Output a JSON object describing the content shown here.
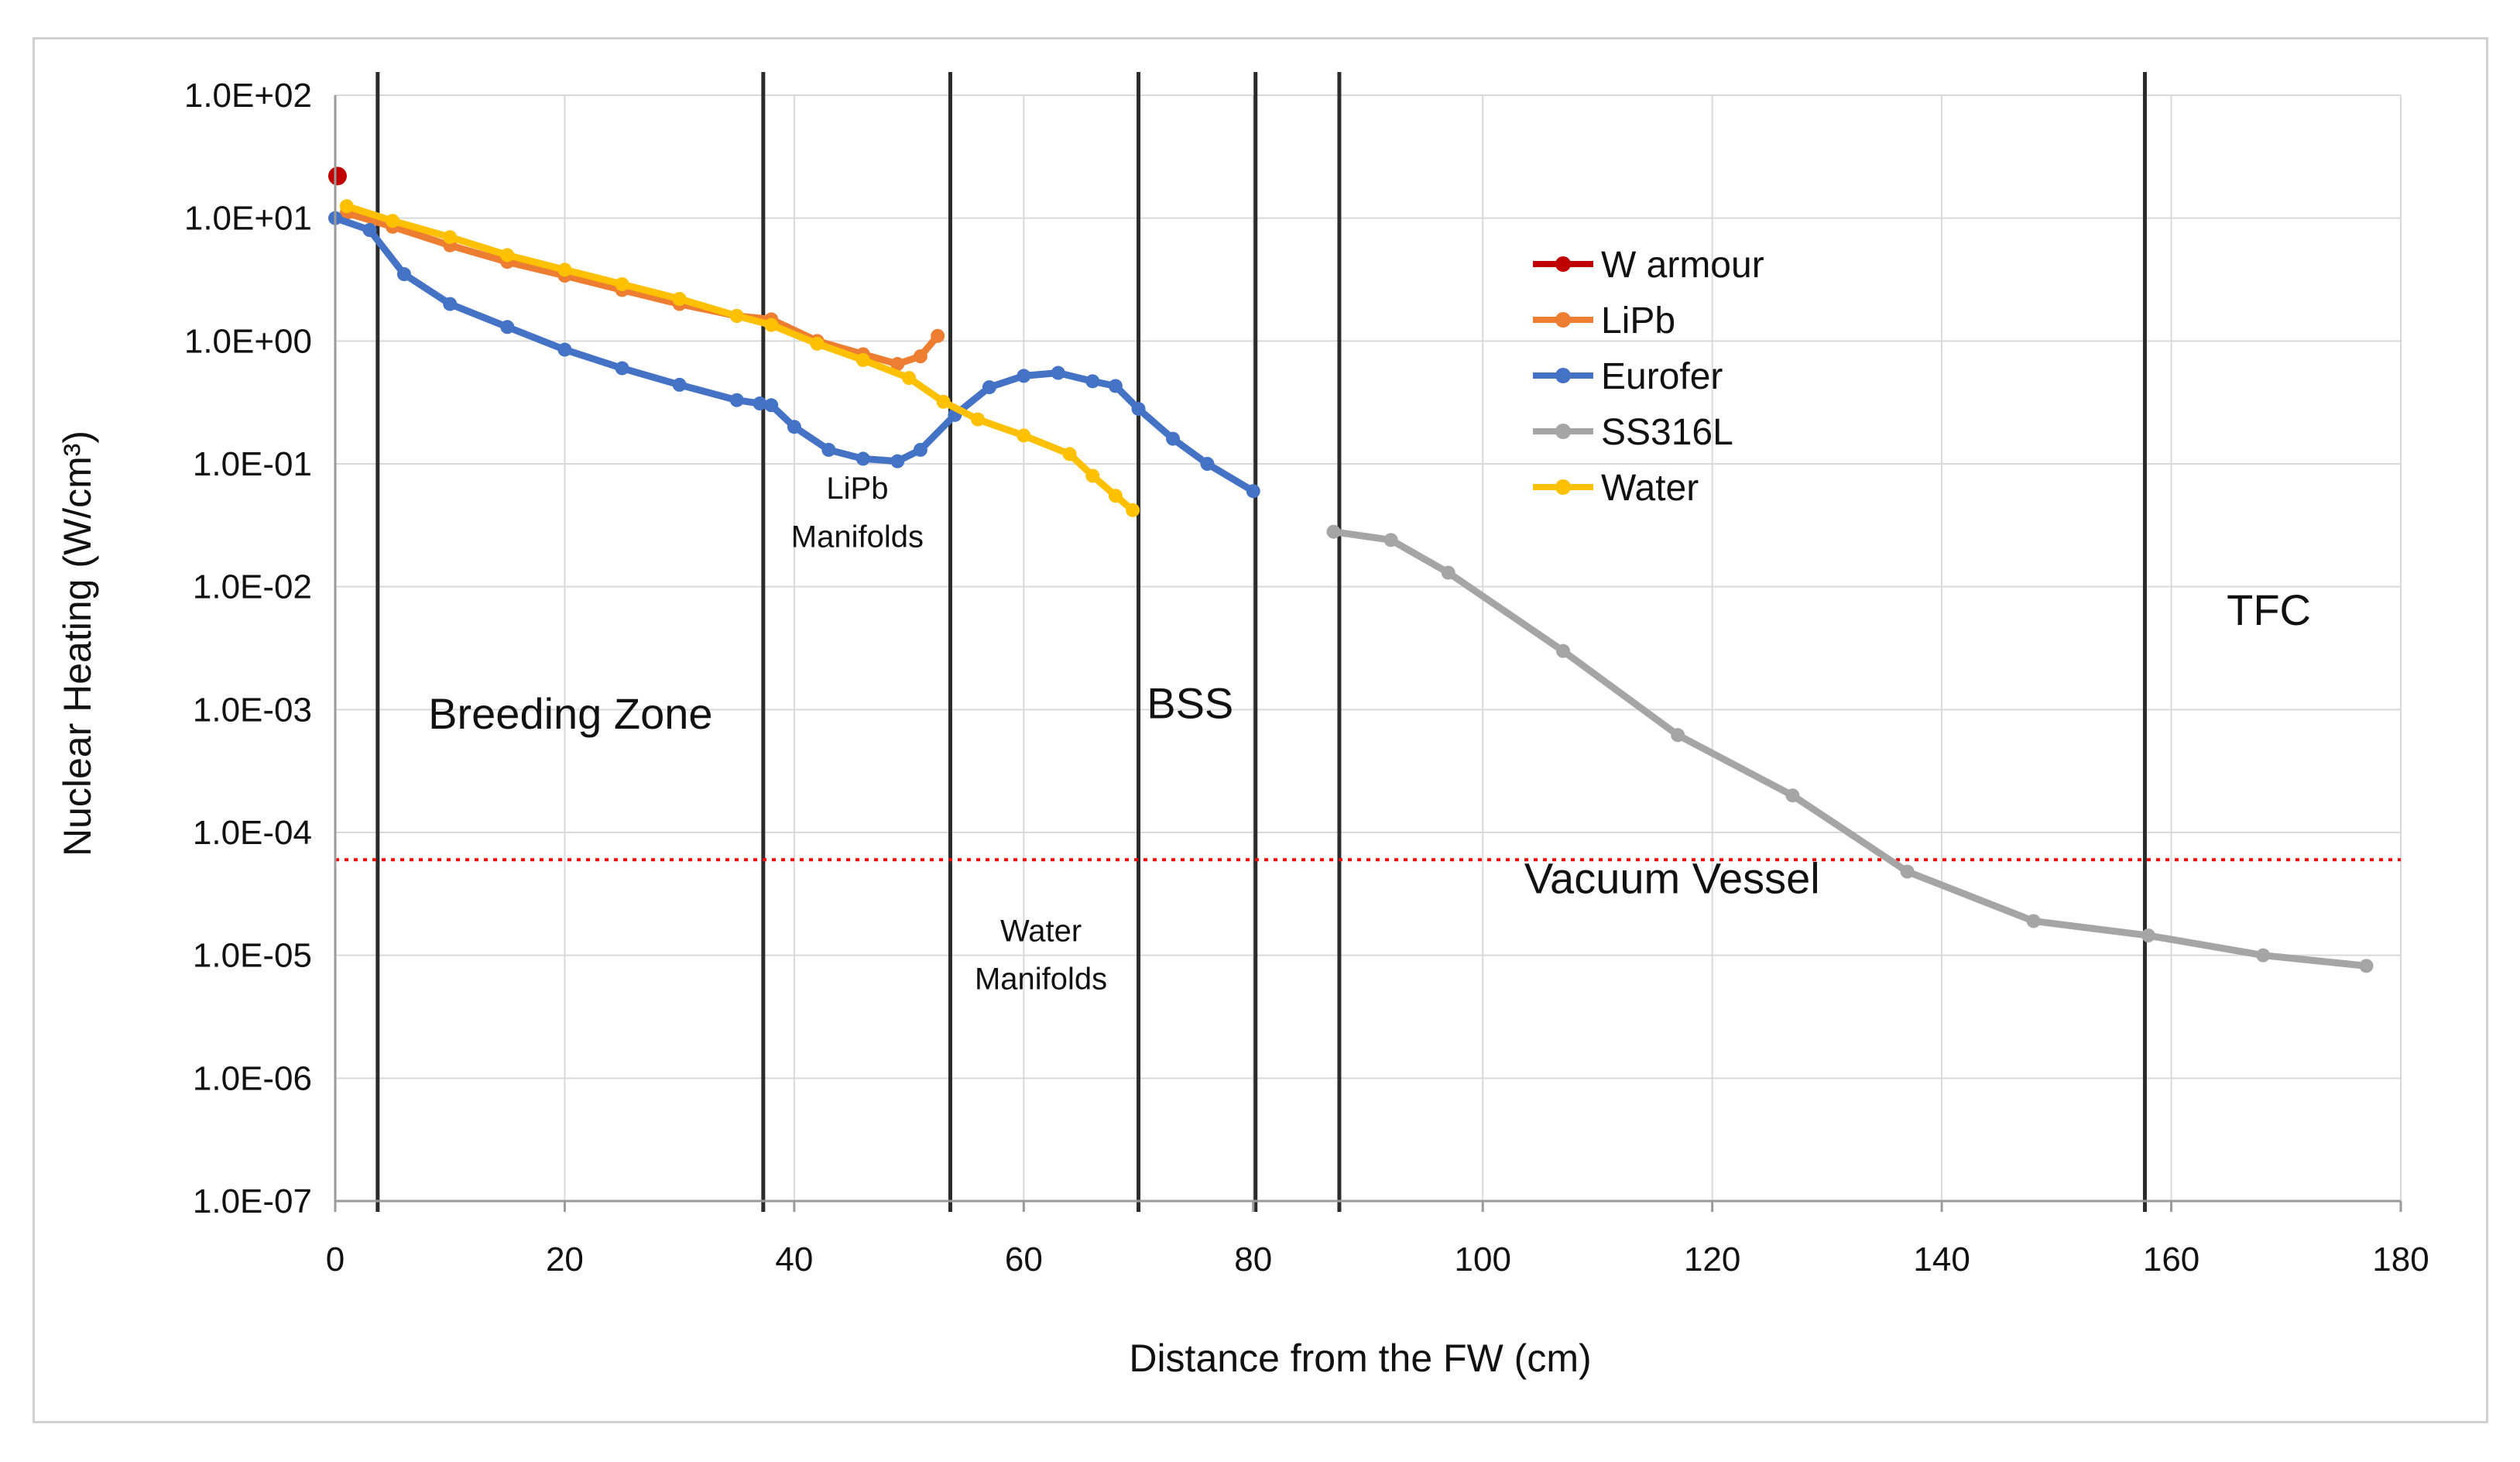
{
  "chart_data": {
    "type": "line",
    "title": "",
    "xlabel": "Distance from the FW (cm)",
    "ylabel": "Nuclear Heating (W/cm³)",
    "xlim": [
      0,
      180
    ],
    "ylim": [
      1e-07,
      100
    ],
    "yscale": "log",
    "x_ticks": [
      0,
      20,
      40,
      60,
      80,
      100,
      120,
      140,
      160,
      180
    ],
    "x_tick_labels": [
      "0",
      "20",
      "40",
      "60",
      "80",
      "100",
      "120",
      "140",
      "160",
      "180"
    ],
    "y_ticks": [
      100.0,
      10.0,
      1.0,
      0.1,
      0.01,
      0.001,
      0.0001,
      1e-05,
      1e-06,
      1e-07
    ],
    "y_tick_labels": [
      "1.0E+02",
      "1.0E+01",
      "1.0E+00",
      "1.0E-01",
      "1.0E-02",
      "1.0E-03",
      "1.0E-04",
      "1.0E-05",
      "1.0E-06",
      "1.0E-07"
    ],
    "grid": true,
    "legend_position": "top-center-right",
    "series": [
      {
        "name": "W armour",
        "color": "#c00000",
        "marker": "circle",
        "x": [
          0.2
        ],
        "y": [
          22
        ]
      },
      {
        "name": "LiPb",
        "color": "#ed7d31",
        "marker": "circle",
        "x": [
          1,
          5,
          10,
          15,
          20,
          25,
          30,
          35,
          38,
          42,
          46,
          49,
          51,
          52.5
        ],
        "y": [
          11,
          8.5,
          6,
          4.4,
          3.4,
          2.6,
          2.0,
          1.6,
          1.5,
          1.0,
          0.78,
          0.65,
          0.75,
          1.1
        ]
      },
      {
        "name": "Eurofer",
        "color": "#4472c4",
        "marker": "circle",
        "x": [
          0,
          3,
          6,
          10,
          15,
          20,
          25,
          30,
          35,
          37,
          38,
          40,
          43,
          46,
          49,
          51,
          54,
          57,
          60,
          63,
          66,
          68,
          70,
          73,
          76,
          80
        ],
        "y": [
          10,
          8,
          3.5,
          2.0,
          1.3,
          0.85,
          0.6,
          0.44,
          0.33,
          0.31,
          0.3,
          0.2,
          0.13,
          0.11,
          0.105,
          0.13,
          0.25,
          0.42,
          0.52,
          0.55,
          0.47,
          0.43,
          0.28,
          0.16,
          0.1,
          0.06
        ]
      },
      {
        "name": "SS316L",
        "color": "#a5a5a5",
        "marker": "circle",
        "x": [
          87,
          92,
          97,
          107,
          117,
          127,
          137,
          148,
          158,
          168,
          177
        ],
        "y": [
          0.028,
          0.024,
          0.013,
          0.003,
          0.00062,
          0.0002,
          4.8e-05,
          1.9e-05,
          1.45e-05,
          1e-05,
          8.2e-06
        ]
      },
      {
        "name": "Water",
        "color": "#ffc000",
        "marker": "circle",
        "x": [
          1,
          5,
          10,
          15,
          20,
          25,
          30,
          35,
          38,
          42,
          46,
          50,
          53,
          56,
          60,
          64,
          66,
          68,
          69.5
        ],
        "y": [
          12.5,
          9.5,
          7,
          5,
          3.8,
          2.9,
          2.2,
          1.6,
          1.35,
          0.95,
          0.7,
          0.5,
          0.32,
          0.23,
          0.17,
          0.12,
          0.08,
          0.055,
          0.042
        ]
      }
    ],
    "region_boundaries_x": [
      3.7,
      37.3,
      53.6,
      70,
      80.2,
      87.5,
      157.7
    ],
    "threshold_line": {
      "y": 6e-05,
      "color": "#ff0000",
      "style": "dotted"
    },
    "annotations": [
      {
        "text": "Breeding Zone",
        "x": 20.5,
        "y": 0.0007
      },
      {
        "text": "LiPb",
        "x": 45.5,
        "y": 0.052
      },
      {
        "text": "Manifolds",
        "x": 45.5,
        "y": 0.021
      },
      {
        "text": "BSS",
        "x": 74.5,
        "y": 0.00085
      },
      {
        "text": "Water",
        "x": 61.5,
        "y": 1.3e-05
      },
      {
        "text": "Manifolds",
        "x": 61.5,
        "y": 5.3e-06
      },
      {
        "text": "Vacuum Vessel",
        "x": 116.5,
        "y": 3.2e-05
      },
      {
        "text": "TFC",
        "x": 168.5,
        "y": 0.0049
      }
    ]
  }
}
